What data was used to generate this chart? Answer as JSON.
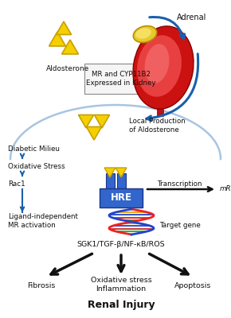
{
  "bg_color": "#ffffff",
  "blue_color": "#1a5fac",
  "dark_color": "#111111",
  "yellow_fc": "#f5d000",
  "yellow_ec": "#c8a000",
  "kidney_outer": "#cc1111",
  "kidney_inner": "#e84040",
  "kidney_hilite": "#f06060",
  "adrenal_fc": "#e8c830",
  "adrenal_ec": "#b89000",
  "hre_fc": "#3366cc",
  "hre_ec": "#1a3388",
  "box_fc": "#f5f5f5",
  "box_ec": "#888888",
  "labels": {
    "adrenal": "Adrenal",
    "aldosterone": "Aldosterone",
    "local_prod": "Local Production\nof Aldosterone",
    "mr_cyp": "MR and CYP11B2\nExpressed in Kidney",
    "diabetic": "Diabetic Milieu",
    "oxidative": "Oxidative Stress",
    "rac1": "Rac1",
    "ligand": "Ligand-independent\nMR activation",
    "transcription": "Transcription",
    "mrna": "mRNA",
    "target_gene": "Target gene",
    "hre": "HRE",
    "sgk1": "SGK1/TGF-β/NF-κB/ROS",
    "fibrosis": "Fibrosis",
    "oxstress": "Oxidative stress\nInflammation",
    "apoptosis": "Apoptosis",
    "renal_injury": "Renal Injury"
  }
}
